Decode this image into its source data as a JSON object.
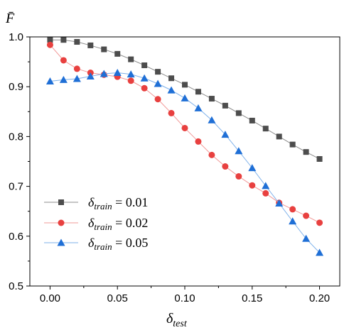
{
  "chart_data": {
    "type": "line",
    "ylabel": "F̄",
    "xlabel_base": "δ",
    "xlabel_sub": "test",
    "xlim": [
      -0.015,
      0.215
    ],
    "ylim": [
      0.5,
      1.0
    ],
    "x_ticks": [
      "0.00",
      "0.05",
      "0.10",
      "0.15",
      "0.20"
    ],
    "x_tick_values": [
      0.0,
      0.05,
      0.1,
      0.15,
      0.2
    ],
    "y_ticks": [
      "0.5",
      "0.6",
      "0.7",
      "0.8",
      "0.9",
      "1.0"
    ],
    "y_tick_values": [
      0.5,
      0.6,
      0.7,
      0.8,
      0.9,
      1.0
    ],
    "legend_position": "bottom-left",
    "x": [
      0.0,
      0.01,
      0.02,
      0.03,
      0.04,
      0.05,
      0.06,
      0.07,
      0.08,
      0.09,
      0.1,
      0.11,
      0.12,
      0.13,
      0.14,
      0.15,
      0.16,
      0.17,
      0.18,
      0.19,
      0.2
    ],
    "series": [
      {
        "legend_base": "δ",
        "legend_sub": "train",
        "legend_value": " = 0.01",
        "marker": "square",
        "color": "#4d4d4d",
        "line_color": "#8c8c8c",
        "values": [
          0.994,
          0.994,
          0.99,
          0.983,
          0.975,
          0.966,
          0.955,
          0.943,
          0.93,
          0.917,
          0.904,
          0.89,
          0.876,
          0.862,
          0.847,
          0.832,
          0.816,
          0.8,
          0.784,
          0.769,
          0.755
        ]
      },
      {
        "legend_base": "δ",
        "legend_sub": "train",
        "legend_value": " = 0.02",
        "marker": "circle",
        "color": "#e8403f",
        "line_color": "#f19897",
        "values": [
          0.984,
          0.953,
          0.936,
          0.928,
          0.924,
          0.92,
          0.912,
          0.897,
          0.875,
          0.847,
          0.817,
          0.79,
          0.763,
          0.74,
          0.72,
          0.702,
          0.686,
          0.667,
          0.654,
          0.641,
          0.627
        ]
      },
      {
        "legend_base": "δ",
        "legend_sub": "train",
        "legend_value": " = 0.05",
        "marker": "triangle",
        "color": "#1f6fd6",
        "line_color": "#7fb1ea",
        "values": [
          0.911,
          0.914,
          0.916,
          0.921,
          0.926,
          0.928,
          0.925,
          0.917,
          0.906,
          0.893,
          0.877,
          0.857,
          0.833,
          0.804,
          0.771,
          0.737,
          0.701,
          0.666,
          0.63,
          0.595,
          0.567
        ]
      }
    ]
  }
}
